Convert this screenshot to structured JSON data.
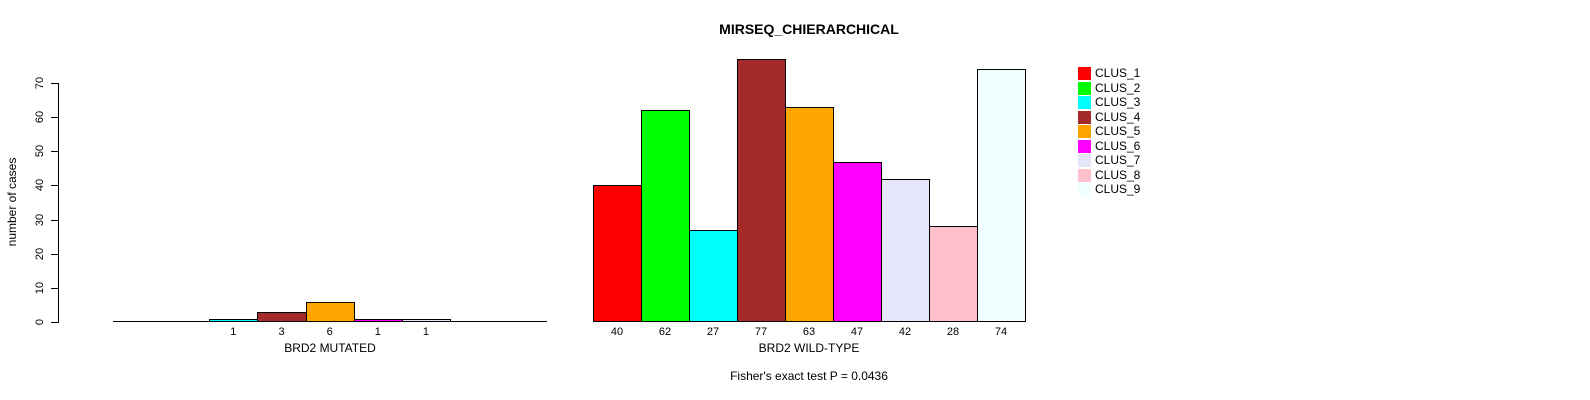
{
  "title": "MIRSEQ_CHIERARCHICAL",
  "ylabel": "number of cases",
  "annotation": "Fisher's exact test P = 0.0436",
  "y_axis": {
    "ticks": [
      0,
      10,
      20,
      30,
      40,
      50,
      60,
      70
    ],
    "range": [
      0,
      70
    ]
  },
  "legend": {
    "position": "right",
    "items": [
      {
        "label": "CLUS_1",
        "color": "#FF0000"
      },
      {
        "label": "CLUS_2",
        "color": "#00FF00"
      },
      {
        "label": "CLUS_3",
        "color": "#00FFFF"
      },
      {
        "label": "CLUS_4",
        "color": "#A52A2A"
      },
      {
        "label": "CLUS_5",
        "color": "#FFA500"
      },
      {
        "label": "CLUS_6",
        "color": "#FF00FF"
      },
      {
        "label": "CLUS_7",
        "color": "#E6E6FA"
      },
      {
        "label": "CLUS_8",
        "color": "#FFC0CB"
      },
      {
        "label": "CLUS_9",
        "color": "#F0FFFF"
      }
    ]
  },
  "chart_data": [
    {
      "type": "bar",
      "title": "MIRSEQ_CHIERARCHICAL",
      "xlabel": "BRD2 MUTATED",
      "ylabel": "number of cases",
      "ylim": [
        0,
        70
      ],
      "grid": false,
      "baseline": true,
      "categories": [
        "CLUS_1",
        "CLUS_2",
        "CLUS_3",
        "CLUS_4",
        "CLUS_5",
        "CLUS_6",
        "CLUS_7",
        "CLUS_8",
        "CLUS_9"
      ],
      "values": [
        0,
        0,
        1,
        3,
        6,
        1,
        1,
        0,
        0
      ],
      "bar_labels": [
        "",
        "",
        "1",
        "3",
        "6",
        "1",
        "1",
        "",
        ""
      ],
      "colors": [
        "#FF0000",
        "#00FF00",
        "#00FFFF",
        "#A52A2A",
        "#FFA500",
        "#FF00FF",
        "#E6E6FA",
        "#FFC0CB",
        "#F0FFFF"
      ]
    },
    {
      "type": "bar",
      "title": "MIRSEQ_CHIERARCHICAL",
      "xlabel": "BRD2 WILD-TYPE",
      "ylabel": "number of cases",
      "ylim": [
        0,
        70
      ],
      "grid": false,
      "baseline": false,
      "categories": [
        "CLUS_1",
        "CLUS_2",
        "CLUS_3",
        "CLUS_4",
        "CLUS_5",
        "CLUS_6",
        "CLUS_7",
        "CLUS_8",
        "CLUS_9"
      ],
      "values": [
        40,
        62,
        27,
        77,
        63,
        47,
        42,
        28,
        74
      ],
      "bar_labels": [
        "40",
        "62",
        "27",
        "77",
        "63",
        "47",
        "42",
        "28",
        "74"
      ],
      "colors": [
        "#FF0000",
        "#00FF00",
        "#00FFFF",
        "#A52A2A",
        "#FFA500",
        "#FF00FF",
        "#E6E6FA",
        "#FFC0CB",
        "#F0FFFF"
      ]
    }
  ]
}
